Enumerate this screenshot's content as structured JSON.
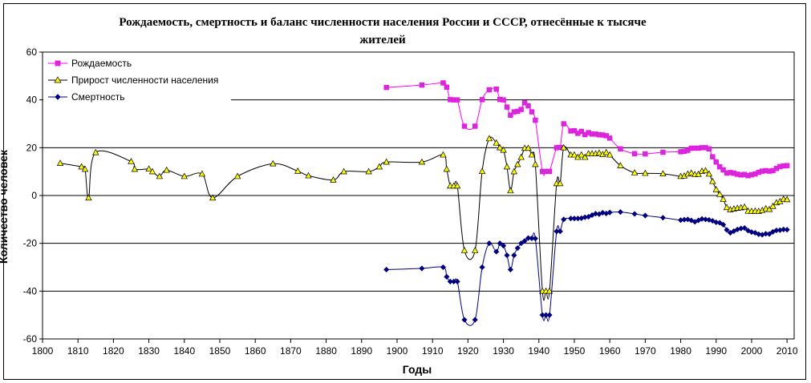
{
  "chart_data": {
    "type": "line",
    "title": "Рождаемость, смертность и баланс численности населения России и СССР, отнесённые к тысяче жителей",
    "title_lines": [
      "Рождаемость, смертность и баланс численности населения России и СССР, отнесённые к тысяче",
      "жителей"
    ],
    "xlabel": "Годы",
    "ylabel": "Количество человек",
    "xlim": [
      1800,
      2012
    ],
    "ylim": [
      -60,
      60
    ],
    "xticks": [
      1800,
      1810,
      1820,
      1830,
      1840,
      1850,
      1860,
      1870,
      1880,
      1890,
      1900,
      1910,
      1920,
      1930,
      1940,
      1950,
      1960,
      1970,
      1980,
      1990,
      2000,
      2010
    ],
    "xtick_labels": [
      "1800",
      "1810",
      "1820",
      "1830",
      "1840",
      "1850",
      "1860",
      "1870",
      "1880",
      "1890",
      "1900",
      "1910",
      "1920",
      "1930",
      "1940",
      "1950",
      "1960",
      "1970",
      "1980",
      "1990",
      "2000",
      "2010"
    ],
    "yticks": [
      -60,
      -40,
      -20,
      0,
      20,
      40,
      60
    ],
    "ytick_labels": [
      "-60",
      "-40",
      "-20",
      "0",
      "20",
      "40",
      "60"
    ],
    "grid": "horizontal",
    "legend_position": "top-left",
    "series": [
      {
        "name": "Рождаемость",
        "color": "#ff00ff",
        "marker": "square",
        "marker_fill": "#cc33cc",
        "points": [
          [
            1897,
            45.2
          ],
          [
            1907,
            46.2
          ],
          [
            1913,
            47.1
          ],
          [
            1914,
            45.3
          ],
          [
            1915,
            40.1
          ],
          [
            1916,
            40.0
          ],
          [
            1917,
            40.0
          ],
          [
            1919,
            29.0
          ],
          [
            1922,
            29.0
          ],
          [
            1924,
            40.1
          ],
          [
            1926,
            44.2
          ],
          [
            1928,
            44.5
          ],
          [
            1929,
            40.2
          ],
          [
            1930,
            40.0
          ],
          [
            1931,
            37.0
          ],
          [
            1932,
            33.6
          ],
          [
            1933,
            35.0
          ],
          [
            1934,
            35.2
          ],
          [
            1935,
            36.0
          ],
          [
            1936,
            38.8
          ],
          [
            1937,
            37.5
          ],
          [
            1938,
            35.0
          ],
          [
            1939,
            31.5
          ],
          [
            1941,
            10.0
          ],
          [
            1942,
            10.1
          ],
          [
            1943,
            10.1
          ],
          [
            1945,
            20.0
          ],
          [
            1946,
            20.1
          ],
          [
            1947,
            30.0
          ],
          [
            1949,
            27.0
          ],
          [
            1950,
            27.1
          ],
          [
            1951,
            26.0
          ],
          [
            1952,
            26.8
          ],
          [
            1953,
            25.5
          ],
          [
            1954,
            26.3
          ],
          [
            1955,
            25.7
          ],
          [
            1956,
            25.7
          ],
          [
            1957,
            25.4
          ],
          [
            1958,
            25.3
          ],
          [
            1959,
            25.0
          ],
          [
            1960,
            24.0
          ],
          [
            1963,
            19.5
          ],
          [
            1967,
            17.5
          ],
          [
            1970,
            17.4
          ],
          [
            1975,
            18.1
          ],
          [
            1980,
            18.3
          ],
          [
            1981,
            18.5
          ],
          [
            1982,
            18.9
          ],
          [
            1983,
            19.8
          ],
          [
            1984,
            19.8
          ],
          [
            1985,
            19.8
          ],
          [
            1986,
            20.0
          ],
          [
            1987,
            20.0
          ],
          [
            1988,
            19.5
          ],
          [
            1989,
            16.2
          ],
          [
            1990,
            14.0
          ],
          [
            1991,
            12.0
          ],
          [
            1992,
            10.7
          ],
          [
            1993,
            9.4
          ],
          [
            1994,
            9.6
          ],
          [
            1995,
            9.3
          ],
          [
            1996,
            8.9
          ],
          [
            1997,
            8.6
          ],
          [
            1998,
            8.8
          ],
          [
            1999,
            8.3
          ],
          [
            2000,
            8.7
          ],
          [
            2001,
            9.0
          ],
          [
            2002,
            9.7
          ],
          [
            2003,
            10.2
          ],
          [
            2004,
            10.4
          ],
          [
            2005,
            10.2
          ],
          [
            2006,
            10.4
          ],
          [
            2007,
            11.3
          ],
          [
            2008,
            12.1
          ],
          [
            2009,
            12.4
          ],
          [
            2010,
            12.5
          ]
        ]
      },
      {
        "name": "Прирост численности населения",
        "color": "#000000",
        "marker": "triangle",
        "marker_fill": "#ffff00",
        "points": [
          [
            1805,
            13.5
          ],
          [
            1811,
            12.0
          ],
          [
            1812,
            11.0
          ],
          [
            1813,
            -1.0
          ],
          [
            1815,
            18.0
          ],
          [
            1825,
            14.2
          ],
          [
            1826,
            11.0
          ],
          [
            1830,
            11.1
          ],
          [
            1831,
            10.0
          ],
          [
            1833,
            8.0
          ],
          [
            1835,
            10.6
          ],
          [
            1840,
            8.0
          ],
          [
            1845,
            9.0
          ],
          [
            1848,
            -1.0
          ],
          [
            1855,
            8.0
          ],
          [
            1865,
            13.3
          ],
          [
            1872,
            10.2
          ],
          [
            1875,
            8.3
          ],
          [
            1882,
            6.5
          ],
          [
            1885,
            10.0
          ],
          [
            1892,
            10.0
          ],
          [
            1895,
            12.0
          ],
          [
            1897,
            14.0
          ],
          [
            1907,
            14.0
          ],
          [
            1913,
            17.0
          ],
          [
            1914,
            11.0
          ],
          [
            1915,
            4.0
          ],
          [
            1916,
            4.0
          ],
          [
            1917,
            4.0
          ],
          [
            1919,
            -23.0
          ],
          [
            1922,
            -23.0
          ],
          [
            1924,
            10.1
          ],
          [
            1926,
            23.8
          ],
          [
            1928,
            22.0
          ],
          [
            1929,
            20.0
          ],
          [
            1930,
            19.0
          ],
          [
            1931,
            12.0
          ],
          [
            1932,
            2.0
          ],
          [
            1933,
            10.0
          ],
          [
            1934,
            13.0
          ],
          [
            1935,
            16.0
          ],
          [
            1936,
            19.8
          ],
          [
            1937,
            19.8
          ],
          [
            1938,
            17.0
          ],
          [
            1939,
            13.0
          ],
          [
            1941,
            -40.0
          ],
          [
            1942,
            -40.0
          ],
          [
            1943,
            -40.0
          ],
          [
            1945,
            5.0
          ],
          [
            1946,
            5.0
          ],
          [
            1947,
            20.0
          ],
          [
            1949,
            17.0
          ],
          [
            1950,
            17.0
          ],
          [
            1951,
            16.0
          ],
          [
            1952,
            17.0
          ],
          [
            1953,
            16.0
          ],
          [
            1954,
            17.5
          ],
          [
            1955,
            17.5
          ],
          [
            1956,
            17.5
          ],
          [
            1957,
            17.8
          ],
          [
            1958,
            17.2
          ],
          [
            1959,
            18.0
          ],
          [
            1960,
            17.0
          ],
          [
            1963,
            12.5
          ],
          [
            1967,
            9.5
          ],
          [
            1970,
            9.3
          ],
          [
            1975,
            9.1
          ],
          [
            1980,
            8.0
          ],
          [
            1981,
            8.2
          ],
          [
            1982,
            9.0
          ],
          [
            1983,
            9.4
          ],
          [
            1984,
            8.8
          ],
          [
            1985,
            8.9
          ],
          [
            1986,
            10.2
          ],
          [
            1987,
            10.4
          ],
          [
            1988,
            9.0
          ],
          [
            1989,
            5.9
          ],
          [
            1990,
            2.5
          ],
          [
            1991,
            0.5
          ],
          [
            1992,
            -1.6
          ],
          [
            1993,
            -5.0
          ],
          [
            1994,
            -5.9
          ],
          [
            1995,
            -5.6
          ],
          [
            1996,
            -5.3
          ],
          [
            1997,
            -5.1
          ],
          [
            1998,
            -4.8
          ],
          [
            1999,
            -6.5
          ],
          [
            2000,
            -6.6
          ],
          [
            2001,
            -6.5
          ],
          [
            2002,
            -6.6
          ],
          [
            2003,
            -6.2
          ],
          [
            2004,
            -5.5
          ],
          [
            2005,
            -5.8
          ],
          [
            2006,
            -4.5
          ],
          [
            2007,
            -3.0
          ],
          [
            2008,
            -2.5
          ],
          [
            2009,
            -1.5
          ],
          [
            2010,
            -1.7
          ]
        ]
      },
      {
        "name": "Смертность",
        "color": "#000080",
        "marker": "diamond",
        "marker_fill": "#000080",
        "points": [
          [
            1897,
            -31.0
          ],
          [
            1907,
            -30.5
          ],
          [
            1913,
            -30.0
          ],
          [
            1914,
            -34.0
          ],
          [
            1915,
            -36.0
          ],
          [
            1916,
            -36.0
          ],
          [
            1917,
            -36.0
          ],
          [
            1919,
            -52.0
          ],
          [
            1922,
            -52.0
          ],
          [
            1924,
            -30.0
          ],
          [
            1926,
            -20.0
          ],
          [
            1928,
            -23.5
          ],
          [
            1929,
            -20.0
          ],
          [
            1930,
            -21.0
          ],
          [
            1931,
            -25.0
          ],
          [
            1932,
            -31.0
          ],
          [
            1933,
            -25.0
          ],
          [
            1934,
            -22.0
          ],
          [
            1935,
            -20.0
          ],
          [
            1936,
            -19.0
          ],
          [
            1937,
            -17.8
          ],
          [
            1938,
            -17.9
          ],
          [
            1939,
            -18.0
          ],
          [
            1941,
            -50.0
          ],
          [
            1942,
            -50.0
          ],
          [
            1943,
            -50.0
          ],
          [
            1945,
            -15.0
          ],
          [
            1946,
            -15.0
          ],
          [
            1947,
            -10.0
          ],
          [
            1949,
            -9.6
          ],
          [
            1950,
            -9.6
          ],
          [
            1951,
            -9.6
          ],
          [
            1952,
            -9.5
          ],
          [
            1953,
            -9.1
          ],
          [
            1954,
            -8.9
          ],
          [
            1955,
            -8.2
          ],
          [
            1956,
            -7.6
          ],
          [
            1957,
            -7.8
          ],
          [
            1958,
            -7.2
          ],
          [
            1959,
            -7.5
          ],
          [
            1960,
            -7.1
          ],
          [
            1963,
            -6.9
          ],
          [
            1967,
            -7.7
          ],
          [
            1970,
            -8.4
          ],
          [
            1975,
            -9.3
          ],
          [
            1980,
            -10.3
          ],
          [
            1981,
            -10.1
          ],
          [
            1982,
            -10.0
          ],
          [
            1983,
            -10.4
          ],
          [
            1984,
            -11.0
          ],
          [
            1985,
            -10.4
          ],
          [
            1986,
            -9.8
          ],
          [
            1987,
            -10.0
          ],
          [
            1988,
            -10.2
          ],
          [
            1989,
            -10.6
          ],
          [
            1990,
            -11.2
          ],
          [
            1991,
            -11.4
          ],
          [
            1992,
            -12.2
          ],
          [
            1993,
            -14.4
          ],
          [
            1994,
            -15.6
          ],
          [
            1995,
            -14.9
          ],
          [
            1996,
            -14.2
          ],
          [
            1997,
            -13.8
          ],
          [
            1998,
            -13.6
          ],
          [
            1999,
            -14.7
          ],
          [
            2000,
            -15.3
          ],
          [
            2001,
            -15.6
          ],
          [
            2002,
            -16.2
          ],
          [
            2003,
            -16.4
          ],
          [
            2004,
            -16.0
          ],
          [
            2005,
            -16.1
          ],
          [
            2006,
            -15.2
          ],
          [
            2007,
            -14.6
          ],
          [
            2008,
            -14.5
          ],
          [
            2009,
            -14.2
          ],
          [
            2010,
            -14.3
          ]
        ]
      }
    ]
  }
}
